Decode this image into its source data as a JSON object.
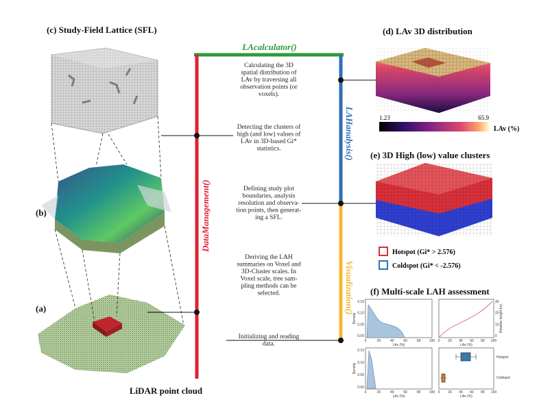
{
  "panels": {
    "c": "(c) Study-Field Lattice (SFL)",
    "d": "(d) LAv 3D distribution",
    "e": "(e) 3D High (low) value clusters",
    "f": "(f) Multi-scale LAH assessment",
    "b": "(b)",
    "a": "(a)",
    "lidar": "LiDAR point cloud"
  },
  "modules": {
    "calculator": "LAcalculator()",
    "management": "DataManagement()",
    "analysis": "LAHanalysis()",
    "visualization": "Visualization()"
  },
  "descriptions": [
    [
      "Calculating the 3D",
      "spatial distribution of",
      "LAv by traversing all",
      "observation points (or",
      "voxels)."
    ],
    [
      "Detecting the clusters of",
      "high (and low) values of",
      "LAv in 3D-based Gi*",
      "statistics."
    ],
    [
      "Defining study plot",
      "boundaries, analysis",
      "resolution and observa-",
      "tion points, then generat-",
      "ing a SFL."
    ],
    [
      "Deriving the LAH",
      "summaries on Voxel and",
      "3D-Cluster scales. In",
      "Voxel scale, tree sam-",
      "pling methods can be",
      "selected."
    ],
    [
      "Initializing and reading",
      "data."
    ]
  ],
  "colorbar": {
    "min": "1.23",
    "max": "65.9",
    "label": "LAv (%)"
  },
  "legend": [
    "Hotspot (Gi* > 2.576)",
    "Coldspot (Gi* < -2.576)"
  ],
  "mini_plots": {
    "density_label": "Density",
    "x_label": "LAv (%)",
    "height_label": "Relative height (m)",
    "hotspot": "Hotspot",
    "coldspot": "Coldspot",
    "x_ticks": [
      "0",
      "20",
      "40",
      "60",
      "80",
      "100"
    ],
    "density_ticks": [
      "0.15",
      "0.10",
      "0.05",
      "0.00"
    ],
    "height_ticks": [
      "30",
      "20",
      "10",
      "0"
    ]
  }
}
